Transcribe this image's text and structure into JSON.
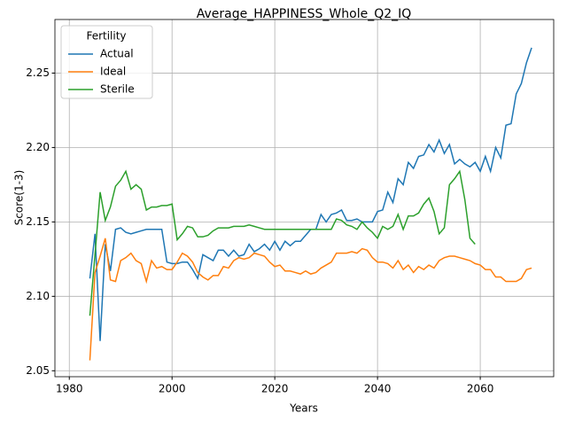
{
  "chart_data": {
    "type": "line",
    "title": "Average_HAPPINESS_Whole_Q2_IQ",
    "xlabel": "Years",
    "ylabel": "Score(1-3)",
    "x": [
      1984,
      1985,
      1986,
      1987,
      1988,
      1989,
      1990,
      1991,
      1992,
      1993,
      1994,
      1995,
      1996,
      1997,
      1998,
      1999,
      2000,
      2001,
      2002,
      2003,
      2004,
      2005,
      2006,
      2007,
      2008,
      2009,
      2010,
      2011,
      2012,
      2013,
      2014,
      2015,
      2016,
      2017,
      2018,
      2019,
      2020,
      2021,
      2022,
      2023,
      2024,
      2025,
      2026,
      2027,
      2028,
      2029,
      2030,
      2031,
      2032,
      2033,
      2034,
      2035,
      2036,
      2037,
      2038,
      2039,
      2040,
      2041,
      2042,
      2043,
      2044,
      2045,
      2046,
      2047,
      2048,
      2049,
      2050,
      2051,
      2052,
      2053,
      2054,
      2055,
      2056,
      2057,
      2058,
      2059,
      2060,
      2061,
      2062,
      2063,
      2064,
      2065,
      2066,
      2067,
      2068,
      2069,
      2070
    ],
    "series": [
      {
        "name": "Actual",
        "color": "#1f77b4",
        "values": [
          2.112,
          2.142,
          2.07,
          2.135,
          2.117,
          2.145,
          2.146,
          2.143,
          2.142,
          2.143,
          2.144,
          2.145,
          2.145,
          2.145,
          2.145,
          2.123,
          2.122,
          2.122,
          2.123,
          2.123,
          2.118,
          2.112,
          2.128,
          2.126,
          2.124,
          2.131,
          2.131,
          2.127,
          2.131,
          2.127,
          2.128,
          2.135,
          2.13,
          2.132,
          2.135,
          2.131,
          2.137,
          2.131,
          2.137,
          2.134,
          2.137,
          2.137,
          2.141,
          2.145,
          2.145,
          2.155,
          2.15,
          2.155,
          2.156,
          2.158,
          2.151,
          2.151,
          2.152,
          2.15,
          2.15,
          2.15,
          2.157,
          2.158,
          2.17,
          2.163,
          2.179,
          2.175,
          2.19,
          2.186,
          2.194,
          2.195,
          2.202,
          2.197,
          2.205,
          2.196,
          2.202,
          2.189,
          2.192,
          2.189,
          2.187,
          2.19,
          2.184,
          2.194,
          2.184,
          2.2,
          2.193,
          2.215,
          2.216,
          2.236,
          2.243,
          2.257,
          2.267
        ]
      },
      {
        "name": "Ideal",
        "color": "#ff7f0e",
        "values": [
          2.057,
          2.116,
          2.127,
          2.139,
          2.111,
          2.11,
          2.124,
          2.126,
          2.129,
          2.124,
          2.122,
          2.11,
          2.124,
          2.119,
          2.12,
          2.118,
          2.118,
          2.123,
          2.129,
          2.127,
          2.123,
          2.116,
          2.113,
          2.111,
          2.114,
          2.114,
          2.12,
          2.119,
          2.124,
          2.126,
          2.125,
          2.126,
          2.129,
          2.128,
          2.127,
          2.123,
          2.12,
          2.121,
          2.117,
          2.117,
          2.116,
          2.115,
          2.117,
          2.115,
          2.116,
          2.119,
          2.121,
          2.123,
          2.129,
          2.129,
          2.129,
          2.13,
          2.129,
          2.132,
          2.131,
          2.126,
          2.123,
          2.123,
          2.122,
          2.119,
          2.124,
          2.118,
          2.121,
          2.116,
          2.12,
          2.118,
          2.121,
          2.119,
          2.124,
          2.126,
          2.127,
          2.127,
          2.126,
          2.125,
          2.124,
          2.122,
          2.121,
          2.118,
          2.118,
          2.113,
          2.113,
          2.11,
          2.11,
          2.11,
          2.112,
          2.118,
          2.119
        ]
      },
      {
        "name": "Sterile",
        "color": "#2ca02c",
        "values": [
          2.087,
          2.128,
          2.17,
          2.151,
          2.16,
          2.174,
          2.178,
          2.184,
          2.172,
          2.175,
          2.172,
          2.158,
          2.16,
          2.16,
          2.161,
          2.161,
          2.162,
          2.138,
          2.142,
          2.147,
          2.146,
          2.14,
          2.14,
          2.141,
          2.144,
          2.146,
          2.146,
          2.146,
          2.147,
          2.147,
          2.147,
          2.148,
          2.147,
          2.146,
          2.145,
          2.145,
          2.145,
          2.145,
          2.145,
          2.145,
          2.145,
          2.145,
          2.145,
          2.145,
          2.145,
          2.145,
          2.145,
          2.145,
          2.152,
          2.151,
          2.148,
          2.147,
          2.145,
          2.15,
          2.146,
          2.143,
          2.139,
          2.147,
          2.145,
          2.147,
          2.155,
          2.145,
          2.154,
          2.154,
          2.156,
          2.162,
          2.166,
          2.157,
          2.142,
          2.146,
          2.175,
          2.179,
          2.184,
          2.165,
          2.139,
          2.135,
          null,
          null,
          null,
          null,
          null,
          null,
          null,
          null,
          null,
          null,
          null
        ]
      }
    ],
    "xlim": [
      1977.2,
      2074.3
    ],
    "ylim": [
      2.046,
      2.286
    ],
    "xticks": [
      1980,
      2000,
      2020,
      2040,
      2060
    ],
    "yticks": [
      {
        "value": 2.05,
        "label": "2.05"
      },
      {
        "value": 2.1,
        "label": "2.10"
      },
      {
        "value": 2.15,
        "label": "2.15"
      },
      {
        "value": 2.2,
        "label": "2.20"
      },
      {
        "value": 2.25,
        "label": "2.25"
      }
    ],
    "grid": true,
    "legend_title": "Fertility",
    "legend_loc": "upper-left"
  }
}
